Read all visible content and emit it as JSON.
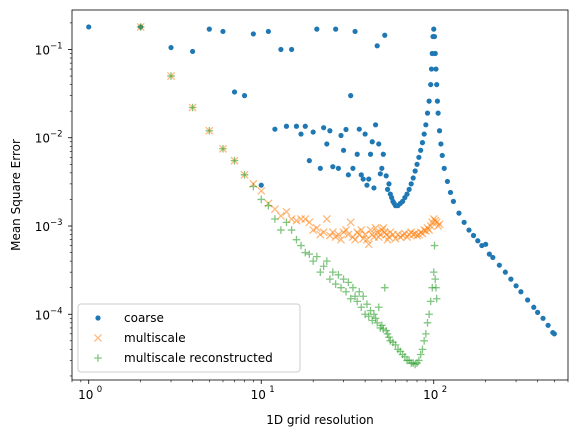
{
  "chart_data": {
    "type": "scatter",
    "title": "",
    "xlabel": "1D grid resolution",
    "ylabel": "Mean Square Error",
    "xscale": "log",
    "yscale": "log",
    "xlim": [
      0.8,
      600
    ],
    "ylim": [
      1.8e-05,
      0.28
    ],
    "x_ticks": [
      1,
      10,
      100
    ],
    "x_tick_labels": [
      "10",
      "10",
      "10"
    ],
    "x_tick_exponents": [
      "0",
      "1",
      "2"
    ],
    "y_ticks": [
      0.0001,
      0.001,
      0.01,
      0.1
    ],
    "y_tick_labels": [
      "10",
      "10",
      "10",
      "10"
    ],
    "y_tick_exponents": [
      "−4",
      "−3",
      "−2",
      "−1"
    ],
    "grid": false,
    "legend_position": "lower-left",
    "colors": {
      "coarse": "#1f77b4",
      "multiscale": "#ff7f0e",
      "multiscale_reconstructed": "#2ca02c"
    },
    "series": [
      {
        "name": "coarse",
        "marker": "circle",
        "points": [
          [
            1,
            0.18
          ],
          [
            2,
            0.18
          ],
          [
            3,
            0.105
          ],
          [
            4,
            0.095
          ],
          [
            5,
            0.17
          ],
          [
            6,
            0.16
          ],
          [
            7,
            0.033
          ],
          [
            8,
            0.03
          ],
          [
            9,
            0.15
          ],
          [
            10,
            0.0029
          ],
          [
            11,
            0.16
          ],
          [
            12,
            0.0125
          ],
          [
            13,
            0.1
          ],
          [
            14,
            0.0135
          ],
          [
            15,
            0.1
          ],
          [
            16,
            0.0135
          ],
          [
            17,
            0.011
          ],
          [
            18,
            0.0135
          ],
          [
            19,
            0.0055
          ],
          [
            20,
            0.0116
          ],
          [
            21,
            0.17
          ],
          [
            22,
            0.0045
          ],
          [
            23,
            0.013
          ],
          [
            24,
            0.0085
          ],
          [
            25,
            0.012
          ],
          [
            26,
            0.0047
          ],
          [
            27,
            0.17
          ],
          [
            28,
            0.0045
          ],
          [
            29,
            0.0106
          ],
          [
            30,
            0.0072
          ],
          [
            31,
            0.0124
          ],
          [
            32,
            0.0038
          ],
          [
            33,
            0.03
          ],
          [
            34,
            0.0045
          ],
          [
            35,
            0.16
          ],
          [
            36,
            0.0065
          ],
          [
            37,
            0.0125
          ],
          [
            38,
            0.0038
          ],
          [
            39,
            0.0034
          ],
          [
            40,
            0.011
          ],
          [
            41,
            0.0029
          ],
          [
            42,
            0.0034
          ],
          [
            43,
            0.0065
          ],
          [
            44,
            0.009
          ],
          [
            45,
            0.0027
          ],
          [
            46,
            0.014
          ],
          [
            47,
            0.11
          ],
          [
            48,
            0.0085
          ],
          [
            49,
            0.0039
          ],
          [
            50,
            0.0045
          ],
          [
            51,
            0.0065
          ],
          [
            52,
            0.145
          ],
          [
            53,
            0.0037
          ],
          [
            54,
            0.0026
          ],
          [
            55,
            0.003
          ],
          [
            56,
            0.0023
          ],
          [
            57,
            0.0021
          ],
          [
            58,
            0.0019
          ],
          [
            59,
            0.0018
          ],
          [
            60,
            0.0017
          ],
          [
            62,
            0.0017
          ],
          [
            64,
            0.0018
          ],
          [
            66,
            0.0019
          ],
          [
            68,
            0.0021
          ],
          [
            70,
            0.0023
          ],
          [
            72,
            0.0026
          ],
          [
            74,
            0.003
          ],
          [
            76,
            0.0035
          ],
          [
            78,
            0.0042
          ],
          [
            80,
            0.005
          ],
          [
            82,
            0.006
          ],
          [
            84,
            0.0072
          ],
          [
            86,
            0.0088
          ],
          [
            88,
            0.011
          ],
          [
            90,
            0.014
          ],
          [
            92,
            0.019
          ],
          [
            94,
            0.026
          ],
          [
            96,
            0.04
          ],
          [
            97,
            0.06
          ],
          [
            98,
            0.09
          ],
          [
            99,
            0.14
          ],
          [
            100,
            0.17
          ],
          [
            101,
            0.14
          ],
          [
            102,
            0.09
          ],
          [
            103,
            0.06
          ],
          [
            104,
            0.04
          ],
          [
            105,
            0.026
          ],
          [
            106,
            0.019
          ],
          [
            108,
            0.012
          ],
          [
            110,
            0.0085
          ],
          [
            112,
            0.0063
          ],
          [
            115,
            0.0045
          ],
          [
            120,
            0.0032
          ],
          [
            125,
            0.0024
          ],
          [
            130,
            0.0019
          ],
          [
            140,
            0.0014
          ],
          [
            150,
            0.0011
          ],
          [
            160,
            0.0009
          ],
          [
            170,
            0.00078
          ],
          [
            180,
            0.00068
          ],
          [
            190,
            0.0006
          ],
          [
            200,
            0.00062
          ],
          [
            210,
            0.00048
          ],
          [
            220,
            0.00044
          ],
          [
            240,
            0.00036
          ],
          [
            260,
            0.0003
          ],
          [
            280,
            0.00025
          ],
          [
            300,
            0.00021
          ],
          [
            320,
            0.00018
          ],
          [
            350,
            0.000145
          ],
          [
            380,
            0.00012
          ],
          [
            400,
            0.000105
          ],
          [
            430,
            9e-05
          ],
          [
            460,
            7.5e-05
          ],
          [
            490,
            6.2e-05
          ],
          [
            500,
            6e-05
          ]
        ]
      },
      {
        "name": "multiscale",
        "marker": "x",
        "points": [
          [
            2,
            0.18
          ],
          [
            3,
            0.05
          ],
          [
            4,
            0.022
          ],
          [
            5,
            0.012
          ],
          [
            6,
            0.0075
          ],
          [
            7,
            0.0055
          ],
          [
            8,
            0.0038
          ],
          [
            9,
            0.003
          ],
          [
            10,
            0.0025
          ],
          [
            11,
            0.0018
          ],
          [
            12,
            0.00155
          ],
          [
            13,
            0.0013
          ],
          [
            14,
            0.00145
          ],
          [
            15,
            0.0012
          ],
          [
            16,
            0.00115
          ],
          [
            17,
            0.0012
          ],
          [
            18,
            0.0012
          ],
          [
            19,
            0.0011
          ],
          [
            20,
            0.0009
          ],
          [
            21,
            0.00095
          ],
          [
            22,
            0.0008
          ],
          [
            23,
            0.00085
          ],
          [
            24,
            0.0012
          ],
          [
            25,
            0.00078
          ],
          [
            26,
            0.00085
          ],
          [
            27,
            0.00075
          ],
          [
            28,
            0.0008
          ],
          [
            29,
            0.0007
          ],
          [
            30,
            0.00085
          ],
          [
            31,
            0.0009
          ],
          [
            32,
            0.0008
          ],
          [
            33,
            0.0011
          ],
          [
            34,
            0.00075
          ],
          [
            35,
            0.0007
          ],
          [
            36,
            0.00085
          ],
          [
            37,
            0.0008
          ],
          [
            38,
            0.0009
          ],
          [
            39,
            0.00072
          ],
          [
            40,
            0.0008
          ],
          [
            41,
            0.0007
          ],
          [
            42,
            0.00062
          ],
          [
            43,
            0.0009
          ],
          [
            44,
            0.0008
          ],
          [
            45,
            0.00075
          ],
          [
            46,
            0.00095
          ],
          [
            47,
            0.00085
          ],
          [
            48,
            0.00075
          ],
          [
            49,
            0.0008
          ],
          [
            50,
            0.0009
          ],
          [
            51,
            0.00095
          ],
          [
            52,
            0.00085
          ],
          [
            53,
            0.0008
          ],
          [
            54,
            0.0007
          ],
          [
            55,
            0.00075
          ],
          [
            56,
            0.00085
          ],
          [
            58,
            0.0008
          ],
          [
            60,
            0.00072
          ],
          [
            62,
            0.0008
          ],
          [
            64,
            0.00075
          ],
          [
            66,
            0.00078
          ],
          [
            68,
            0.00082
          ],
          [
            70,
            0.00075
          ],
          [
            72,
            0.0008
          ],
          [
            74,
            0.00085
          ],
          [
            76,
            0.0008
          ],
          [
            78,
            0.00082
          ],
          [
            80,
            0.00078
          ],
          [
            82,
            0.0008
          ],
          [
            84,
            0.00085
          ],
          [
            86,
            0.00082
          ],
          [
            88,
            0.0009
          ],
          [
            90,
            0.00088
          ],
          [
            92,
            0.00095
          ],
          [
            94,
            0.0009
          ],
          [
            96,
            0.001
          ],
          [
            98,
            0.0011
          ],
          [
            100,
            0.0012
          ],
          [
            102,
            0.00115
          ],
          [
            104,
            0.0011
          ],
          [
            106,
            0.001
          ],
          [
            108,
            0.00105
          ]
        ]
      },
      {
        "name": "multiscale reconstructed",
        "marker": "plus",
        "points": [
          [
            2,
            0.18
          ],
          [
            3,
            0.05
          ],
          [
            4,
            0.022
          ],
          [
            5,
            0.012
          ],
          [
            6,
            0.0075
          ],
          [
            7,
            0.0055
          ],
          [
            8,
            0.0038
          ],
          [
            9,
            0.0028
          ],
          [
            10,
            0.002
          ],
          [
            11,
            0.0017
          ],
          [
            12,
            0.0012
          ],
          [
            13,
            0.0009
          ],
          [
            14,
            0.0011
          ],
          [
            15,
            0.0009
          ],
          [
            16,
            0.0007
          ],
          [
            17,
            0.0006
          ],
          [
            18,
            0.0005
          ],
          [
            19,
            0.00048
          ],
          [
            20,
            0.0004
          ],
          [
            21,
            0.00045
          ],
          [
            22,
            0.0003
          ],
          [
            23,
            0.00035
          ],
          [
            24,
            0.0004
          ],
          [
            25,
            0.00025
          ],
          [
            26,
            0.0003
          ],
          [
            27,
            0.00022
          ],
          [
            28,
            0.00028
          ],
          [
            29,
            0.0002
          ],
          [
            30,
            0.00025
          ],
          [
            31,
            0.00018
          ],
          [
            32,
            0.00023
          ],
          [
            33,
            0.00015
          ],
          [
            34,
            0.0002
          ],
          [
            35,
            0.00016
          ],
          [
            36,
            0.00014
          ],
          [
            37,
            0.00018
          ],
          [
            38,
            0.00012
          ],
          [
            39,
            0.00016
          ],
          [
            40,
            0.0001
          ],
          [
            41,
            0.00013
          ],
          [
            42,
            9.5e-05
          ],
          [
            43,
            0.00011
          ],
          [
            44,
            8.5e-05
          ],
          [
            45,
            0.0001
          ],
          [
            46,
            9e-05
          ],
          [
            47,
            8e-05
          ],
          [
            48,
            0.00012
          ],
          [
            49,
            7e-05
          ],
          [
            50,
            7.5e-05
          ],
          [
            51,
            6.8e-05
          ],
          [
            52,
            0.0002
          ],
          [
            53,
            6.5e-05
          ],
          [
            54,
            6e-05
          ],
          [
            55,
            5.5e-05
          ],
          [
            56,
            5e-05
          ],
          [
            58,
            4.8e-05
          ],
          [
            60,
            4.5e-05
          ],
          [
            62,
            4e-05
          ],
          [
            64,
            3.8e-05
          ],
          [
            66,
            3.5e-05
          ],
          [
            68,
            3.3e-05
          ],
          [
            70,
            3e-05
          ],
          [
            72,
            3e-05
          ],
          [
            74,
            2.8e-05
          ],
          [
            76,
            2.8e-05
          ],
          [
            78,
            2.7e-05
          ],
          [
            80,
            2.8e-05
          ],
          [
            82,
            3e-05
          ],
          [
            84,
            3.5e-05
          ],
          [
            86,
            4e-05
          ],
          [
            88,
            5e-05
          ],
          [
            90,
            6e-05
          ],
          [
            92,
            8e-05
          ],
          [
            94,
            0.0001
          ],
          [
            96,
            0.00014
          ],
          [
            98,
            0.0002
          ],
          [
            100,
            0.0003
          ],
          [
            101,
            0.0006
          ],
          [
            102,
            0.00025
          ],
          [
            103,
            0.0002
          ],
          [
            104,
            0.00015
          ]
        ]
      }
    ]
  }
}
